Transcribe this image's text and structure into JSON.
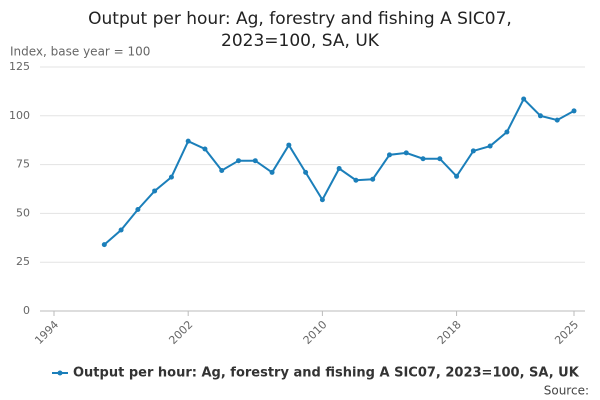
{
  "chart_data": {
    "type": "line",
    "title": "Output per hour: Ag, forestry and fishing A SIC07, 2023=100, SA, UK",
    "y_label": "Index, base year = 100",
    "source": "Source:",
    "x": [
      1997,
      1998,
      1999,
      2000,
      2001,
      2002,
      2003,
      2004,
      2005,
      2006,
      2007,
      2008,
      2009,
      2010,
      2011,
      2012,
      2013,
      2014,
      2015,
      2016,
      2017,
      2018,
      2019,
      2020,
      2021,
      2022,
      2023,
      2024,
      2025
    ],
    "series": [
      {
        "name": "Output per hour: Ag, forestry and fishing A SIC07, 2023=100, SA, UK",
        "color": "#1b7fba",
        "values": [
          34,
          41.5,
          52,
          61.5,
          68.6,
          87,
          83,
          72,
          77,
          77,
          71,
          85,
          71,
          57,
          73,
          67,
          67.5,
          80,
          81,
          78,
          78,
          69,
          82,
          84.5,
          91.7,
          108.6,
          100,
          97.8,
          102.5
        ]
      }
    ],
    "xlim": [
      1994,
      2025
    ],
    "xticks": [
      1994,
      2002,
      2010,
      2018,
      2025
    ],
    "ylim": [
      0,
      125
    ],
    "yticks": [
      0,
      25,
      50,
      75,
      100,
      125
    ],
    "grid": true,
    "legend": "bottom"
  }
}
